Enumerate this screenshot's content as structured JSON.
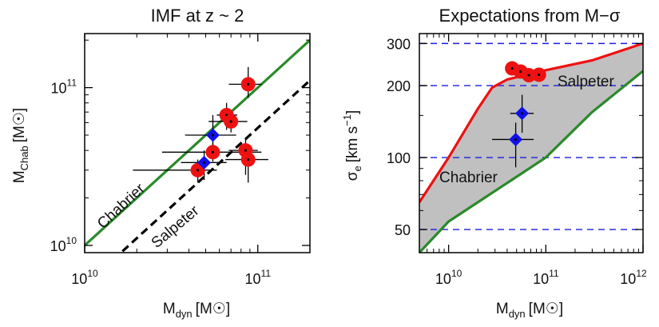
{
  "chart_data": [
    {
      "type": "scatter",
      "title": "IMF at z ~  2",
      "xlabel": {
        "main": "M",
        "sub": "dyn",
        "unit": "[M",
        "unit_close": "]"
      },
      "ylabel": {
        "main": "M",
        "sub": "Chab",
        "unit": "[M",
        "unit_close": "]"
      },
      "xscale": "log",
      "yscale": "log",
      "xlim": [
        10000000000.0,
        200000000000.0
      ],
      "ylim": [
        9000000000.0,
        220000000000.0
      ],
      "x_ticks": [
        {
          "value": 10000000000.0,
          "base": "10",
          "exp": "10"
        },
        {
          "value": 100000000000.0,
          "base": "10",
          "exp": "11"
        }
      ],
      "y_ticks": [
        {
          "value": 10000000000.0,
          "base": "10",
          "exp": "10"
        },
        {
          "value": 100000000000.0,
          "base": "10",
          "exp": "11"
        }
      ],
      "lines": [
        {
          "name": "Chabrier",
          "relation": "y = x",
          "color": "#2a8a2a",
          "style": "solid"
        },
        {
          "name": "Salpeter",
          "relation": "y = x / 1.8",
          "color": "#000000",
          "style": "dashed"
        }
      ],
      "red_points": [
        {
          "x": 88000000000.0,
          "y": 105000000000.0,
          "xerr": [
            68000000000.0,
            105000000000.0
          ],
          "yerr": [
            86000000000.0,
            135000000000.0
          ]
        },
        {
          "x": 66000000000.0,
          "y": 67000000000.0,
          "xerr": [
            58000000000.0,
            76000000000.0
          ],
          "yerr": [
            54000000000.0,
            80000000000.0
          ]
        },
        {
          "x": 70000000000.0,
          "y": 61000000000.0,
          "xerr": [
            52000000000.0,
            87000000000.0
          ],
          "yerr": [
            52000000000.0,
            70000000000.0
          ]
        },
        {
          "x": 85000000000.0,
          "y": 40000000000.0,
          "xerr": [
            68000000000.0,
            100000000000.0
          ],
          "yerr": [
            28000000000.0,
            48000000000.0
          ]
        },
        {
          "x": 88000000000.0,
          "y": 35000000000.0,
          "xerr": [
            65000000000.0,
            115000000000.0
          ],
          "yerr": [
            25000000000.0,
            43000000000.0
          ]
        },
        {
          "x": 55000000000.0,
          "y": 39000000000.0,
          "xerr": [
            28000000000.0,
            105000000000.0
          ],
          "yerr": [
            34000000000.0,
            45000000000.0
          ]
        },
        {
          "x": 45000000000.0,
          "y": 30000000000.0,
          "xerr": [
            19000000000.0,
            58000000000.0
          ],
          "yerr": [
            25000000000.0,
            35000000000.0
          ]
        }
      ],
      "blue_points": [
        {
          "x": 55000000000.0,
          "y": 50000000000.0,
          "xerr": [
            38000000000.0,
            75000000000.0
          ],
          "yerr": [
            38000000000.0,
            67000000000.0
          ]
        },
        {
          "x": 49000000000.0,
          "y": 33500000000.0,
          "xerr": [
            36000000000.0,
            66000000000.0
          ],
          "yerr": [
            26000000000.0,
            40000000000.0
          ]
        }
      ],
      "annotations": [
        {
          "text": "Chabrier"
        },
        {
          "text": "Salpeter"
        }
      ]
    },
    {
      "type": "area",
      "title": "Expectations from M−σ",
      "xlabel": {
        "main": "M",
        "sub": "dyn",
        "unit": "[M",
        "unit_close": "]"
      },
      "ylabel": {
        "main": "σ",
        "sub": "e",
        "unit": "[km s",
        "sup": "−1",
        "unit_close": "]"
      },
      "xscale": "log",
      "yscale": "log",
      "xlim": [
        5000000000.0,
        1000000000000.0
      ],
      "ylim": [
        40,
        330
      ],
      "x_ticks": [
        {
          "value": 10000000000.0,
          "base": "10",
          "exp": "10"
        },
        {
          "value": 100000000000.0,
          "base": "10",
          "exp": "11"
        },
        {
          "value": 1000000000000.0,
          "base": "10",
          "exp": "12"
        }
      ],
      "y_ticks": [
        {
          "value": 50,
          "label": "50"
        },
        {
          "value": 100,
          "label": "100"
        },
        {
          "value": 200,
          "label": "200"
        },
        {
          "value": 300,
          "label": "300"
        }
      ],
      "hlines": [
        50,
        100,
        200,
        300
      ],
      "salpeter_curve": [
        [
          5000000000.0,
          65
        ],
        [
          10000000000.0,
          100
        ],
        [
          20000000000.0,
          160
        ],
        [
          28000000000.0,
          196
        ],
        [
          40000000000.0,
          212
        ],
        [
          100000000000.0,
          232
        ],
        [
          300000000000.0,
          255
        ],
        [
          1000000000000.0,
          300
        ]
      ],
      "chabrier_curve": [
        [
          5000000000.0,
          40
        ],
        [
          10000000000.0,
          54
        ],
        [
          100000000000.0,
          100
        ],
        [
          300000000000.0,
          155
        ],
        [
          1000000000000.0,
          230
        ]
      ],
      "red_points": [
        {
          "x": 45000000000.0,
          "y": 236,
          "xerr": [
            40000000000.0,
            51000000000.0
          ],
          "yerr": [
            226,
            246
          ]
        },
        {
          "x": 55000000000.0,
          "y": 229,
          "xerr": [
            49000000000.0,
            62000000000.0
          ],
          "yerr": [
            220,
            238
          ]
        },
        {
          "x": 67000000000.0,
          "y": 221,
          "xerr": [
            59000000000.0,
            76000000000.0
          ],
          "yerr": [
            212,
            230
          ]
        },
        {
          "x": 85000000000.0,
          "y": 222,
          "xerr": [
            75000000000.0,
            97000000000.0
          ],
          "yerr": [
            213,
            232
          ]
        }
      ],
      "blue_points": [
        {
          "x": 57000000000.0,
          "y": 153,
          "xerr": [
            43000000000.0,
            75000000000.0
          ],
          "yerr": [
            127,
            183
          ]
        },
        {
          "x": 49000000000.0,
          "y": 119,
          "xerr": [
            28000000000.0,
            75000000000.0
          ],
          "yerr": [
            91,
            140
          ]
        }
      ],
      "annotations": [
        {
          "text": "Salpeter"
        },
        {
          "text": "Chabrier"
        }
      ]
    }
  ]
}
